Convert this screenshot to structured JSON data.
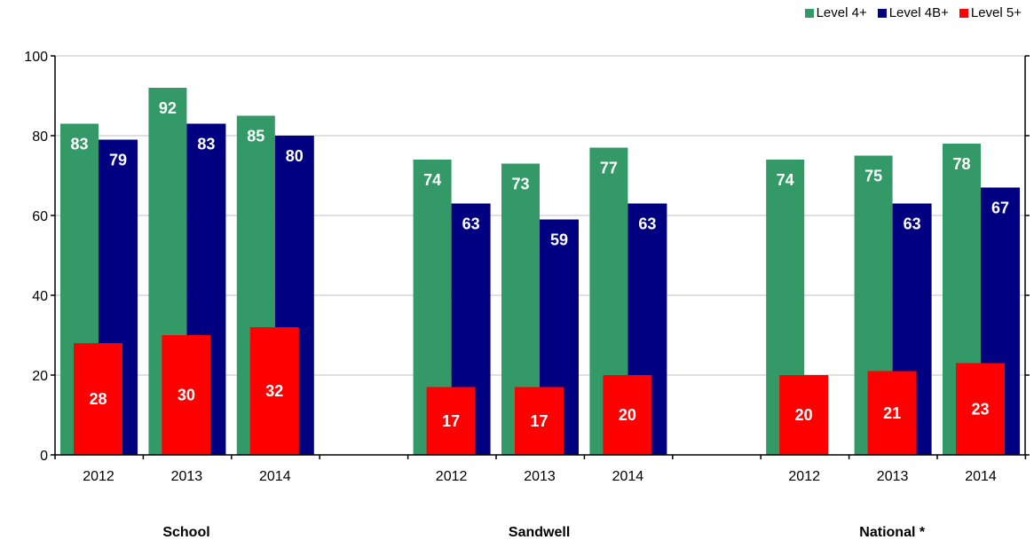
{
  "chart_data": {
    "type": "bar",
    "groups": [
      "School",
      "Sandwell",
      "National *"
    ],
    "years": [
      "2012",
      "2013",
      "2014"
    ],
    "ylim": [
      0,
      100
    ],
    "yticks": [
      0,
      20,
      40,
      60,
      80,
      100
    ],
    "grid": true,
    "legend_position": "top-right",
    "series": [
      {
        "name": "Level 4+",
        "color": "#339966",
        "values": [
          [
            83,
            92,
            85
          ],
          [
            74,
            73,
            77
          ],
          [
            74,
            75,
            78
          ]
        ],
        "labels": [
          [
            "83",
            "92",
            "85"
          ],
          [
            "74",
            "73",
            "77"
          ],
          [
            "74",
            "75",
            "78"
          ]
        ]
      },
      {
        "name": "Level 4B+",
        "color": "#000080",
        "values": [
          [
            79,
            83,
            80
          ],
          [
            63,
            59,
            63
          ],
          [
            null,
            63,
            67
          ]
        ],
        "labels": [
          [
            "79",
            "83",
            "80"
          ],
          [
            "63",
            "59",
            "63"
          ],
          [
            "",
            "63",
            "67"
          ]
        ]
      },
      {
        "name": "Level 5+",
        "color": "#ff0000",
        "values": [
          [
            28,
            30,
            32
          ],
          [
            17,
            17,
            20
          ],
          [
            20,
            21,
            23
          ]
        ],
        "labels": [
          [
            "28",
            "30",
            "32"
          ],
          [
            "17",
            "17",
            "20"
          ],
          [
            "20",
            "21",
            "23"
          ]
        ]
      }
    ]
  }
}
